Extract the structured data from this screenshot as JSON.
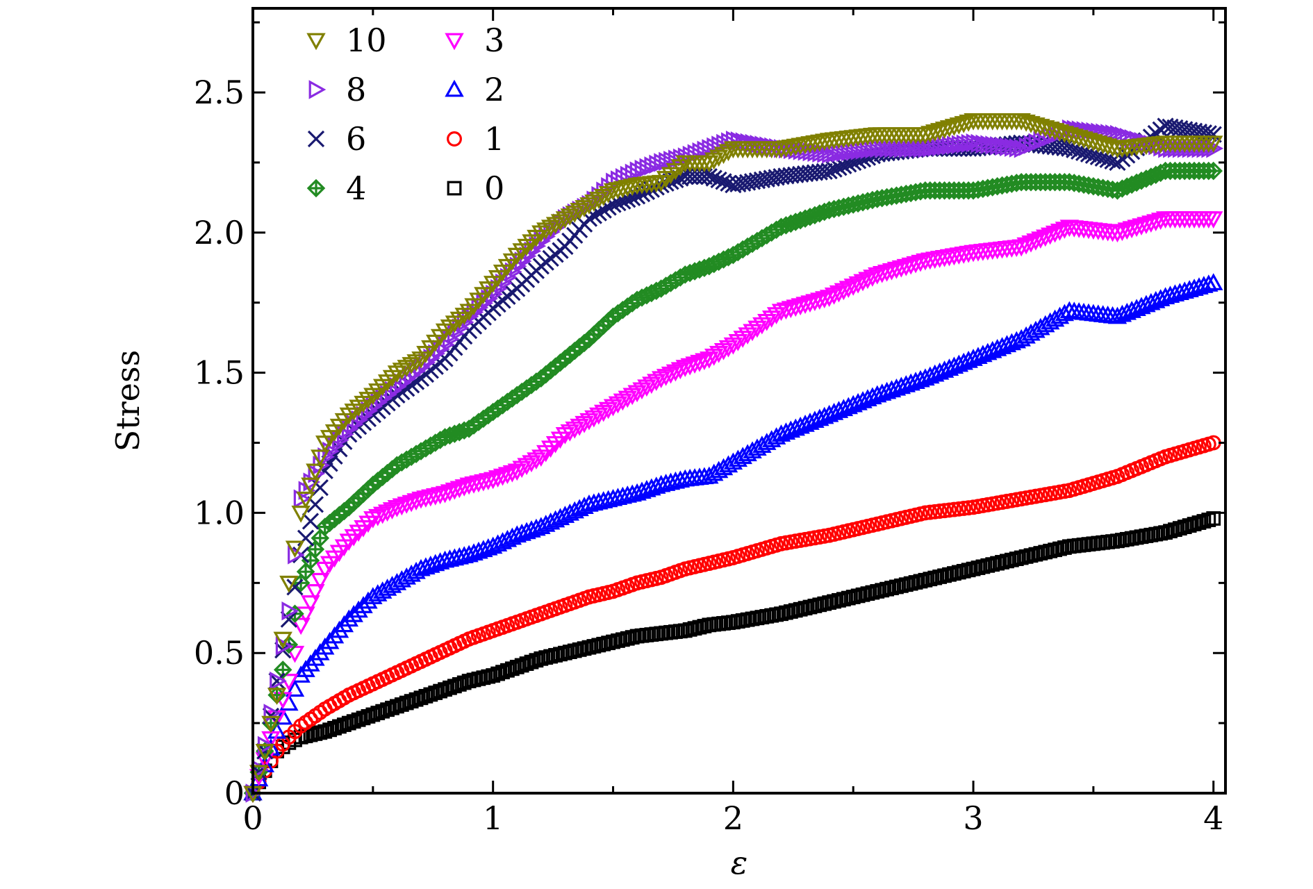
{
  "chart_data": {
    "type": "scatter",
    "xlabel": "ε",
    "ylabel": "Stress",
    "xlim": [
      0,
      4.05
    ],
    "ylim": [
      0,
      2.8
    ],
    "xticks": [
      0,
      1,
      2,
      3,
      4
    ],
    "xtick_labels": [
      "0",
      "1",
      "2",
      "3",
      "4"
    ],
    "yticks": [
      0,
      0.5,
      1.0,
      1.5,
      2.0,
      2.5
    ],
    "ytick_labels": [
      "0",
      "0.5",
      "1.0",
      "1.5",
      "2.0",
      "2.5"
    ],
    "grid": false,
    "legend_position": "top-left",
    "series": [
      {
        "name": "10",
        "marker": "triangle-down",
        "color": "#808000",
        "x": [
          0,
          0.05,
          0.1,
          0.15,
          0.2,
          0.3,
          0.4,
          0.5,
          0.6,
          0.7,
          0.8,
          0.9,
          1.0,
          1.1,
          1.2,
          1.3,
          1.4,
          1.5,
          1.6,
          1.7,
          1.8,
          1.9,
          2.0,
          2.2,
          2.4,
          2.6,
          2.8,
          3.0,
          3.2,
          3.4,
          3.6,
          3.8,
          4.0
        ],
        "y": [
          0,
          0.15,
          0.35,
          0.75,
          1.0,
          1.25,
          1.35,
          1.42,
          1.5,
          1.55,
          1.65,
          1.72,
          1.82,
          1.92,
          2.0,
          2.05,
          2.1,
          2.15,
          2.17,
          2.18,
          2.25,
          2.25,
          2.3,
          2.3,
          2.33,
          2.35,
          2.35,
          2.4,
          2.4,
          2.35,
          2.3,
          2.32,
          2.32
        ]
      },
      {
        "name": "8",
        "marker": "triangle-right",
        "color": "#8a2be2",
        "x": [
          0,
          0.05,
          0.1,
          0.15,
          0.2,
          0.3,
          0.4,
          0.5,
          0.6,
          0.7,
          0.8,
          0.9,
          1.0,
          1.1,
          1.2,
          1.3,
          1.4,
          1.5,
          1.6,
          1.7,
          1.8,
          1.9,
          2.0,
          2.2,
          2.4,
          2.6,
          2.8,
          3.0,
          3.2,
          3.4,
          3.6,
          3.8,
          4.0
        ],
        "y": [
          0,
          0.17,
          0.4,
          0.65,
          1.05,
          1.2,
          1.3,
          1.38,
          1.45,
          1.52,
          1.6,
          1.7,
          1.78,
          1.88,
          1.97,
          2.05,
          2.1,
          2.18,
          2.22,
          2.25,
          2.27,
          2.3,
          2.33,
          2.3,
          2.28,
          2.3,
          2.3,
          2.32,
          2.3,
          2.37,
          2.35,
          2.3,
          2.3
        ]
      },
      {
        "name": "6",
        "marker": "x",
        "color": "#191970",
        "x": [
          0,
          0.05,
          0.1,
          0.15,
          0.2,
          0.3,
          0.4,
          0.5,
          0.6,
          0.7,
          0.8,
          0.9,
          1.0,
          1.1,
          1.2,
          1.3,
          1.4,
          1.5,
          1.6,
          1.7,
          1.8,
          1.9,
          2.0,
          2.2,
          2.4,
          2.6,
          2.8,
          3.0,
          3.2,
          3.4,
          3.6,
          3.8,
          4.0
        ],
        "y": [
          0,
          0.15,
          0.4,
          0.62,
          0.85,
          1.15,
          1.28,
          1.35,
          1.42,
          1.48,
          1.55,
          1.65,
          1.73,
          1.8,
          1.88,
          1.95,
          2.05,
          2.1,
          2.13,
          2.17,
          2.2,
          2.2,
          2.17,
          2.2,
          2.22,
          2.28,
          2.3,
          2.3,
          2.32,
          2.3,
          2.25,
          2.38,
          2.35
        ]
      },
      {
        "name": "4",
        "marker": "diamond-plus",
        "color": "#228b22",
        "x": [
          0,
          0.05,
          0.1,
          0.15,
          0.2,
          0.3,
          0.4,
          0.5,
          0.6,
          0.7,
          0.8,
          0.9,
          1.0,
          1.1,
          1.2,
          1.3,
          1.4,
          1.5,
          1.6,
          1.7,
          1.8,
          1.9,
          2.0,
          2.2,
          2.4,
          2.6,
          2.8,
          3.0,
          3.2,
          3.4,
          3.6,
          3.8,
          4.0
        ],
        "y": [
          0,
          0.15,
          0.35,
          0.53,
          0.75,
          0.95,
          1.02,
          1.1,
          1.17,
          1.22,
          1.27,
          1.3,
          1.36,
          1.42,
          1.48,
          1.55,
          1.62,
          1.7,
          1.76,
          1.8,
          1.85,
          1.88,
          1.92,
          2.02,
          2.08,
          2.12,
          2.15,
          2.15,
          2.18,
          2.18,
          2.15,
          2.22,
          2.22
        ]
      },
      {
        "name": "3",
        "marker": "triangle-down",
        "color": "#ff00ff",
        "x": [
          0,
          0.05,
          0.1,
          0.15,
          0.2,
          0.3,
          0.4,
          0.5,
          0.6,
          0.7,
          0.8,
          0.9,
          1.0,
          1.1,
          1.2,
          1.3,
          1.4,
          1.5,
          1.6,
          1.7,
          1.8,
          1.9,
          2.0,
          2.2,
          2.4,
          2.6,
          2.8,
          3.0,
          3.2,
          3.4,
          3.6,
          3.8,
          4.0
        ],
        "y": [
          0,
          0.12,
          0.27,
          0.4,
          0.6,
          0.8,
          0.9,
          0.98,
          1.02,
          1.05,
          1.07,
          1.1,
          1.12,
          1.15,
          1.2,
          1.28,
          1.33,
          1.38,
          1.43,
          1.48,
          1.52,
          1.55,
          1.6,
          1.72,
          1.77,
          1.85,
          1.9,
          1.93,
          1.95,
          2.02,
          2.0,
          2.05,
          2.05
        ]
      },
      {
        "name": "2",
        "marker": "triangle-up",
        "color": "#0000ff",
        "x": [
          0,
          0.05,
          0.1,
          0.15,
          0.2,
          0.3,
          0.4,
          0.5,
          0.6,
          0.7,
          0.8,
          0.9,
          1.0,
          1.1,
          1.2,
          1.3,
          1.4,
          1.5,
          1.6,
          1.7,
          1.8,
          1.9,
          2.0,
          2.2,
          2.4,
          2.6,
          2.8,
          3.0,
          3.2,
          3.4,
          3.6,
          3.8,
          4.0
        ],
        "y": [
          0,
          0.1,
          0.22,
          0.32,
          0.42,
          0.52,
          0.62,
          0.7,
          0.75,
          0.8,
          0.83,
          0.85,
          0.88,
          0.92,
          0.95,
          0.99,
          1.03,
          1.05,
          1.07,
          1.1,
          1.12,
          1.13,
          1.18,
          1.28,
          1.35,
          1.42,
          1.48,
          1.55,
          1.62,
          1.72,
          1.7,
          1.77,
          1.82
        ]
      },
      {
        "name": "1",
        "marker": "circle",
        "color": "#ff0000",
        "x": [
          0,
          0.05,
          0.1,
          0.15,
          0.2,
          0.3,
          0.4,
          0.5,
          0.6,
          0.7,
          0.8,
          0.9,
          1.0,
          1.1,
          1.2,
          1.3,
          1.4,
          1.5,
          1.6,
          1.7,
          1.8,
          1.9,
          2.0,
          2.2,
          2.4,
          2.6,
          2.8,
          3.0,
          3.2,
          3.4,
          3.6,
          3.8,
          4.0
        ],
        "y": [
          0,
          0.08,
          0.15,
          0.2,
          0.24,
          0.3,
          0.35,
          0.39,
          0.43,
          0.47,
          0.51,
          0.55,
          0.58,
          0.61,
          0.64,
          0.67,
          0.7,
          0.72,
          0.75,
          0.77,
          0.8,
          0.82,
          0.84,
          0.89,
          0.92,
          0.96,
          1.0,
          1.02,
          1.05,
          1.08,
          1.13,
          1.2,
          1.25
        ]
      },
      {
        "name": "0",
        "marker": "square",
        "color": "#000000",
        "x": [
          0,
          0.05,
          0.1,
          0.15,
          0.2,
          0.3,
          0.4,
          0.5,
          0.6,
          0.7,
          0.8,
          0.9,
          1.0,
          1.1,
          1.2,
          1.3,
          1.4,
          1.5,
          1.6,
          1.7,
          1.8,
          1.9,
          2.0,
          2.2,
          2.4,
          2.6,
          2.8,
          3.0,
          3.2,
          3.4,
          3.6,
          3.8,
          4.0
        ],
        "y": [
          0,
          0.08,
          0.15,
          0.18,
          0.2,
          0.22,
          0.25,
          0.28,
          0.31,
          0.34,
          0.37,
          0.4,
          0.42,
          0.45,
          0.48,
          0.5,
          0.52,
          0.54,
          0.56,
          0.57,
          0.58,
          0.6,
          0.61,
          0.64,
          0.68,
          0.72,
          0.76,
          0.8,
          0.84,
          0.88,
          0.9,
          0.93,
          0.98
        ]
      }
    ]
  }
}
